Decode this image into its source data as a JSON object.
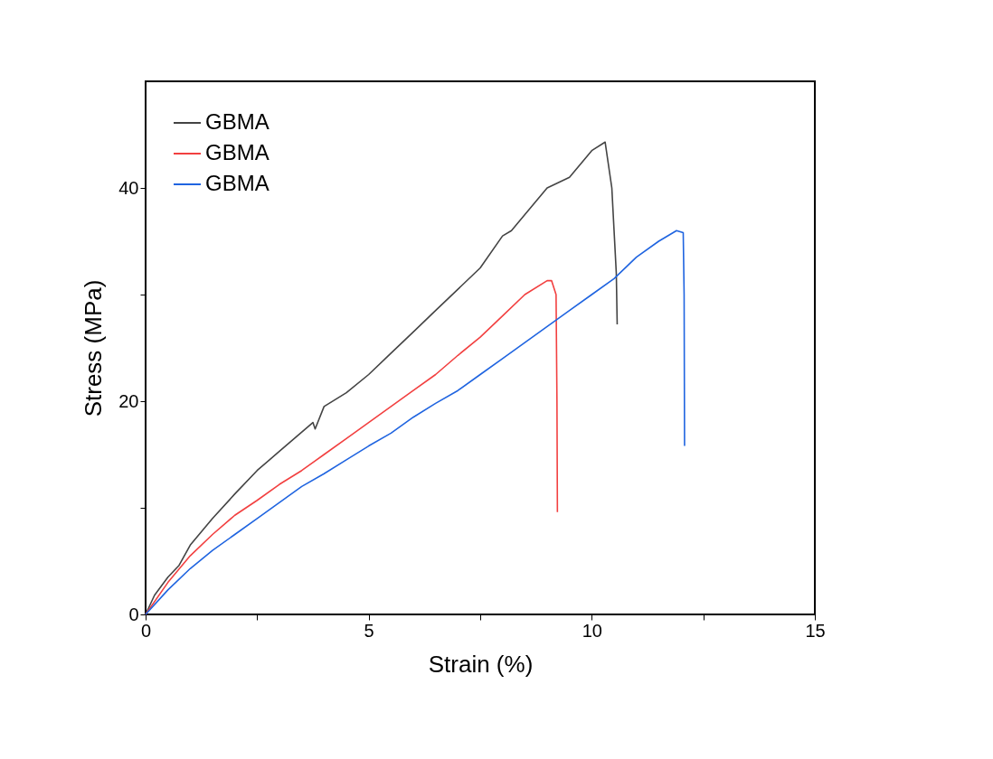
{
  "chart_data": {
    "type": "line",
    "xlabel": "Strain (%)",
    "ylabel": "Stress (MPa)",
    "xlim": [
      0,
      15
    ],
    "ylim": [
      0,
      50
    ],
    "xticks": [
      0,
      {
        "value": 2.5,
        "label": null
      },
      5,
      {
        "value": 7.5,
        "label": null
      },
      10,
      {
        "value": 12.5,
        "label": null
      },
      15
    ],
    "yticks": [
      0,
      {
        "value": 10,
        "label": null
      },
      20,
      {
        "value": 30,
        "label": null
      },
      40
    ],
    "grid": false,
    "legend": "top left",
    "line_style": "solid",
    "marker": "none",
    "series": [
      {
        "name": "GBMA",
        "color": "#444444",
        "x": [
          0,
          0.2,
          0.5,
          0.75,
          1,
          1.5,
          2,
          2.5,
          3,
          3.75,
          3.8,
          4,
          4.5,
          5,
          5.5,
          6,
          6.5,
          7,
          7.5,
          8,
          8.2,
          8.5,
          9,
          9.5,
          10,
          10.3,
          10.45,
          10.55,
          10.57
        ],
        "values": [
          0,
          1.8,
          3.5,
          4.6,
          6.5,
          9,
          11.3,
          13.5,
          15.3,
          18,
          17.4,
          19.5,
          20.8,
          22.5,
          24.5,
          26.5,
          28.5,
          30.5,
          32.5,
          35.5,
          36,
          37.5,
          40,
          41,
          43.5,
          44.3,
          40,
          32,
          27.2
        ]
      },
      {
        "name": "GBMA",
        "color": "#f24040",
        "x": [
          0,
          0.5,
          1,
          1.5,
          2,
          2.5,
          3,
          3.5,
          4,
          4.5,
          5,
          5.5,
          6,
          6.5,
          7,
          7.5,
          8,
          8.5,
          9,
          9.1,
          9.2,
          9.22,
          9.23
        ],
        "values": [
          0,
          3.0,
          5.5,
          7.5,
          9.3,
          10.7,
          12.2,
          13.5,
          15,
          16.5,
          18,
          19.5,
          21,
          22.5,
          24.3,
          26,
          28,
          30,
          31.3,
          31.3,
          30,
          20,
          9.6
        ]
      },
      {
        "name": "GBMA",
        "color": "#1f64e0",
        "x": [
          0,
          0.5,
          1,
          1.5,
          2,
          2.5,
          3,
          3.5,
          4,
          4.5,
          5,
          5.5,
          6,
          6.5,
          7,
          7.5,
          8,
          8.5,
          9,
          9.5,
          10,
          10.5,
          11,
          11.5,
          11.9,
          12.05,
          12.07,
          12.08
        ],
        "values": [
          0,
          2.3,
          4.3,
          6,
          7.5,
          9,
          10.5,
          12,
          13.2,
          14.5,
          15.8,
          17,
          18.5,
          19.8,
          21,
          22.5,
          24,
          25.5,
          27,
          28.5,
          30,
          31.5,
          33.5,
          35,
          36,
          35.8,
          30,
          15.8
        ]
      }
    ]
  }
}
